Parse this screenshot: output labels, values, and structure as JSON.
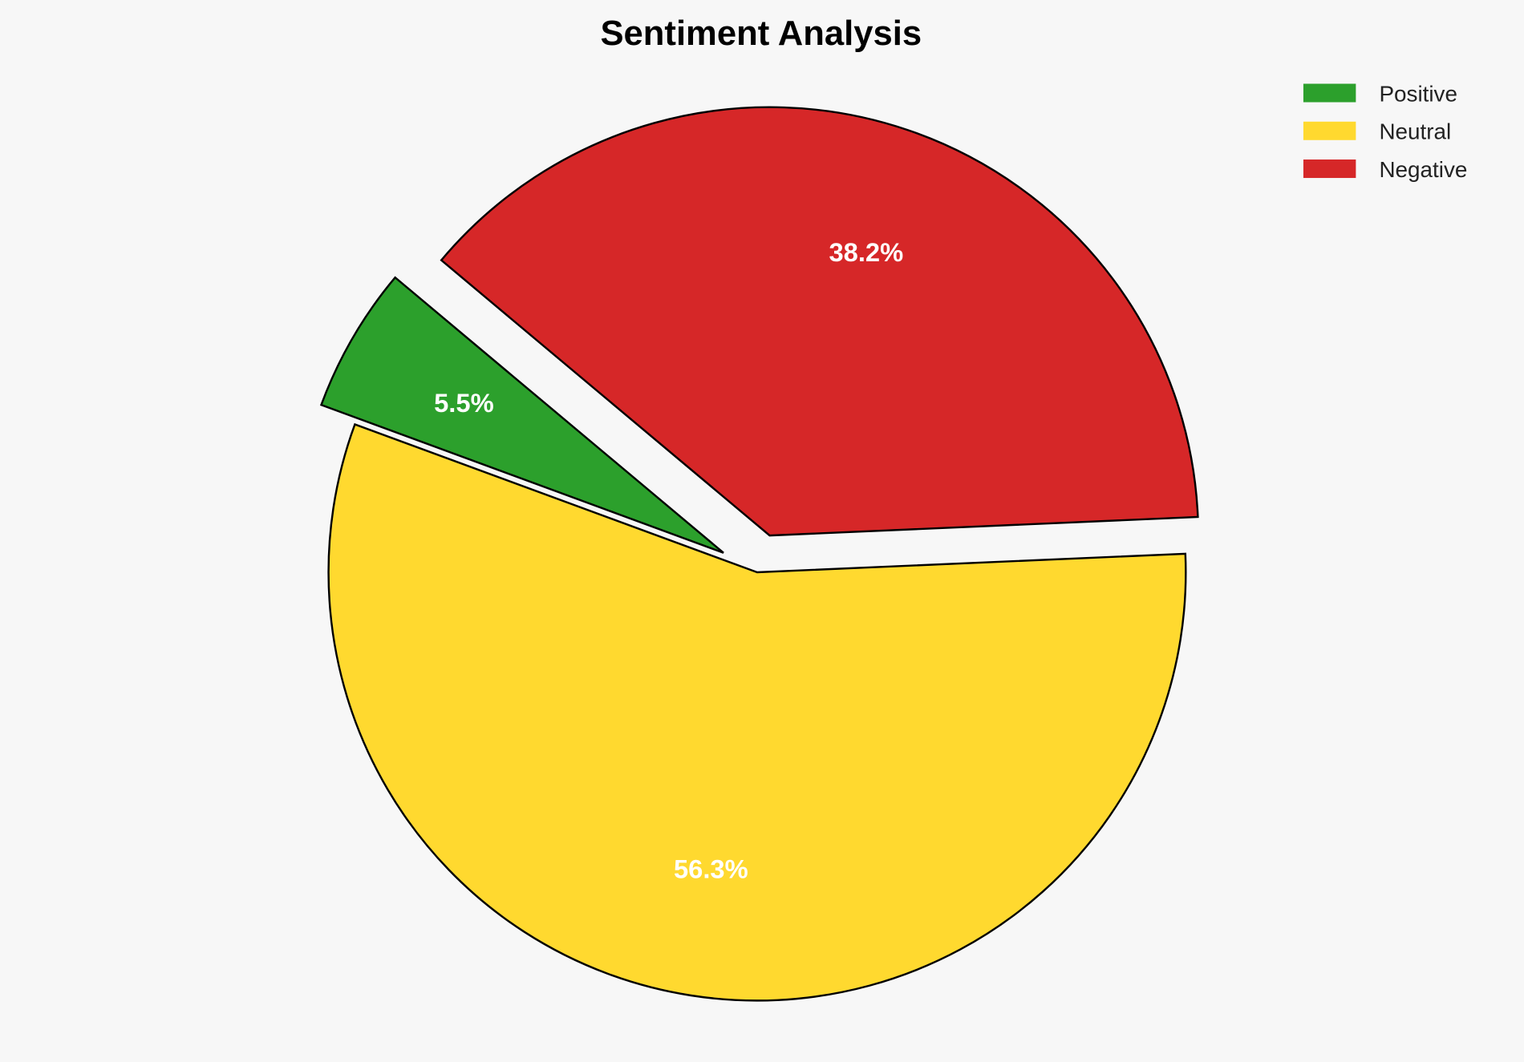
{
  "chart_data": {
    "type": "pie",
    "title": "Sentiment Analysis",
    "categories": [
      "Positive",
      "Neutral",
      "Negative"
    ],
    "values": [
      5.5,
      56.3,
      38.2
    ],
    "labels": [
      "5.5%",
      "56.3%",
      "38.2%"
    ],
    "colors": [
      "#2ca02c",
      "#ffd92f",
      "#d62728"
    ],
    "exploded": [
      true,
      false,
      true
    ],
    "start_angle_deg": 140,
    "legend": {
      "placement": "top-right",
      "entries": [
        "Positive",
        "Neutral",
        "Negative"
      ]
    }
  }
}
